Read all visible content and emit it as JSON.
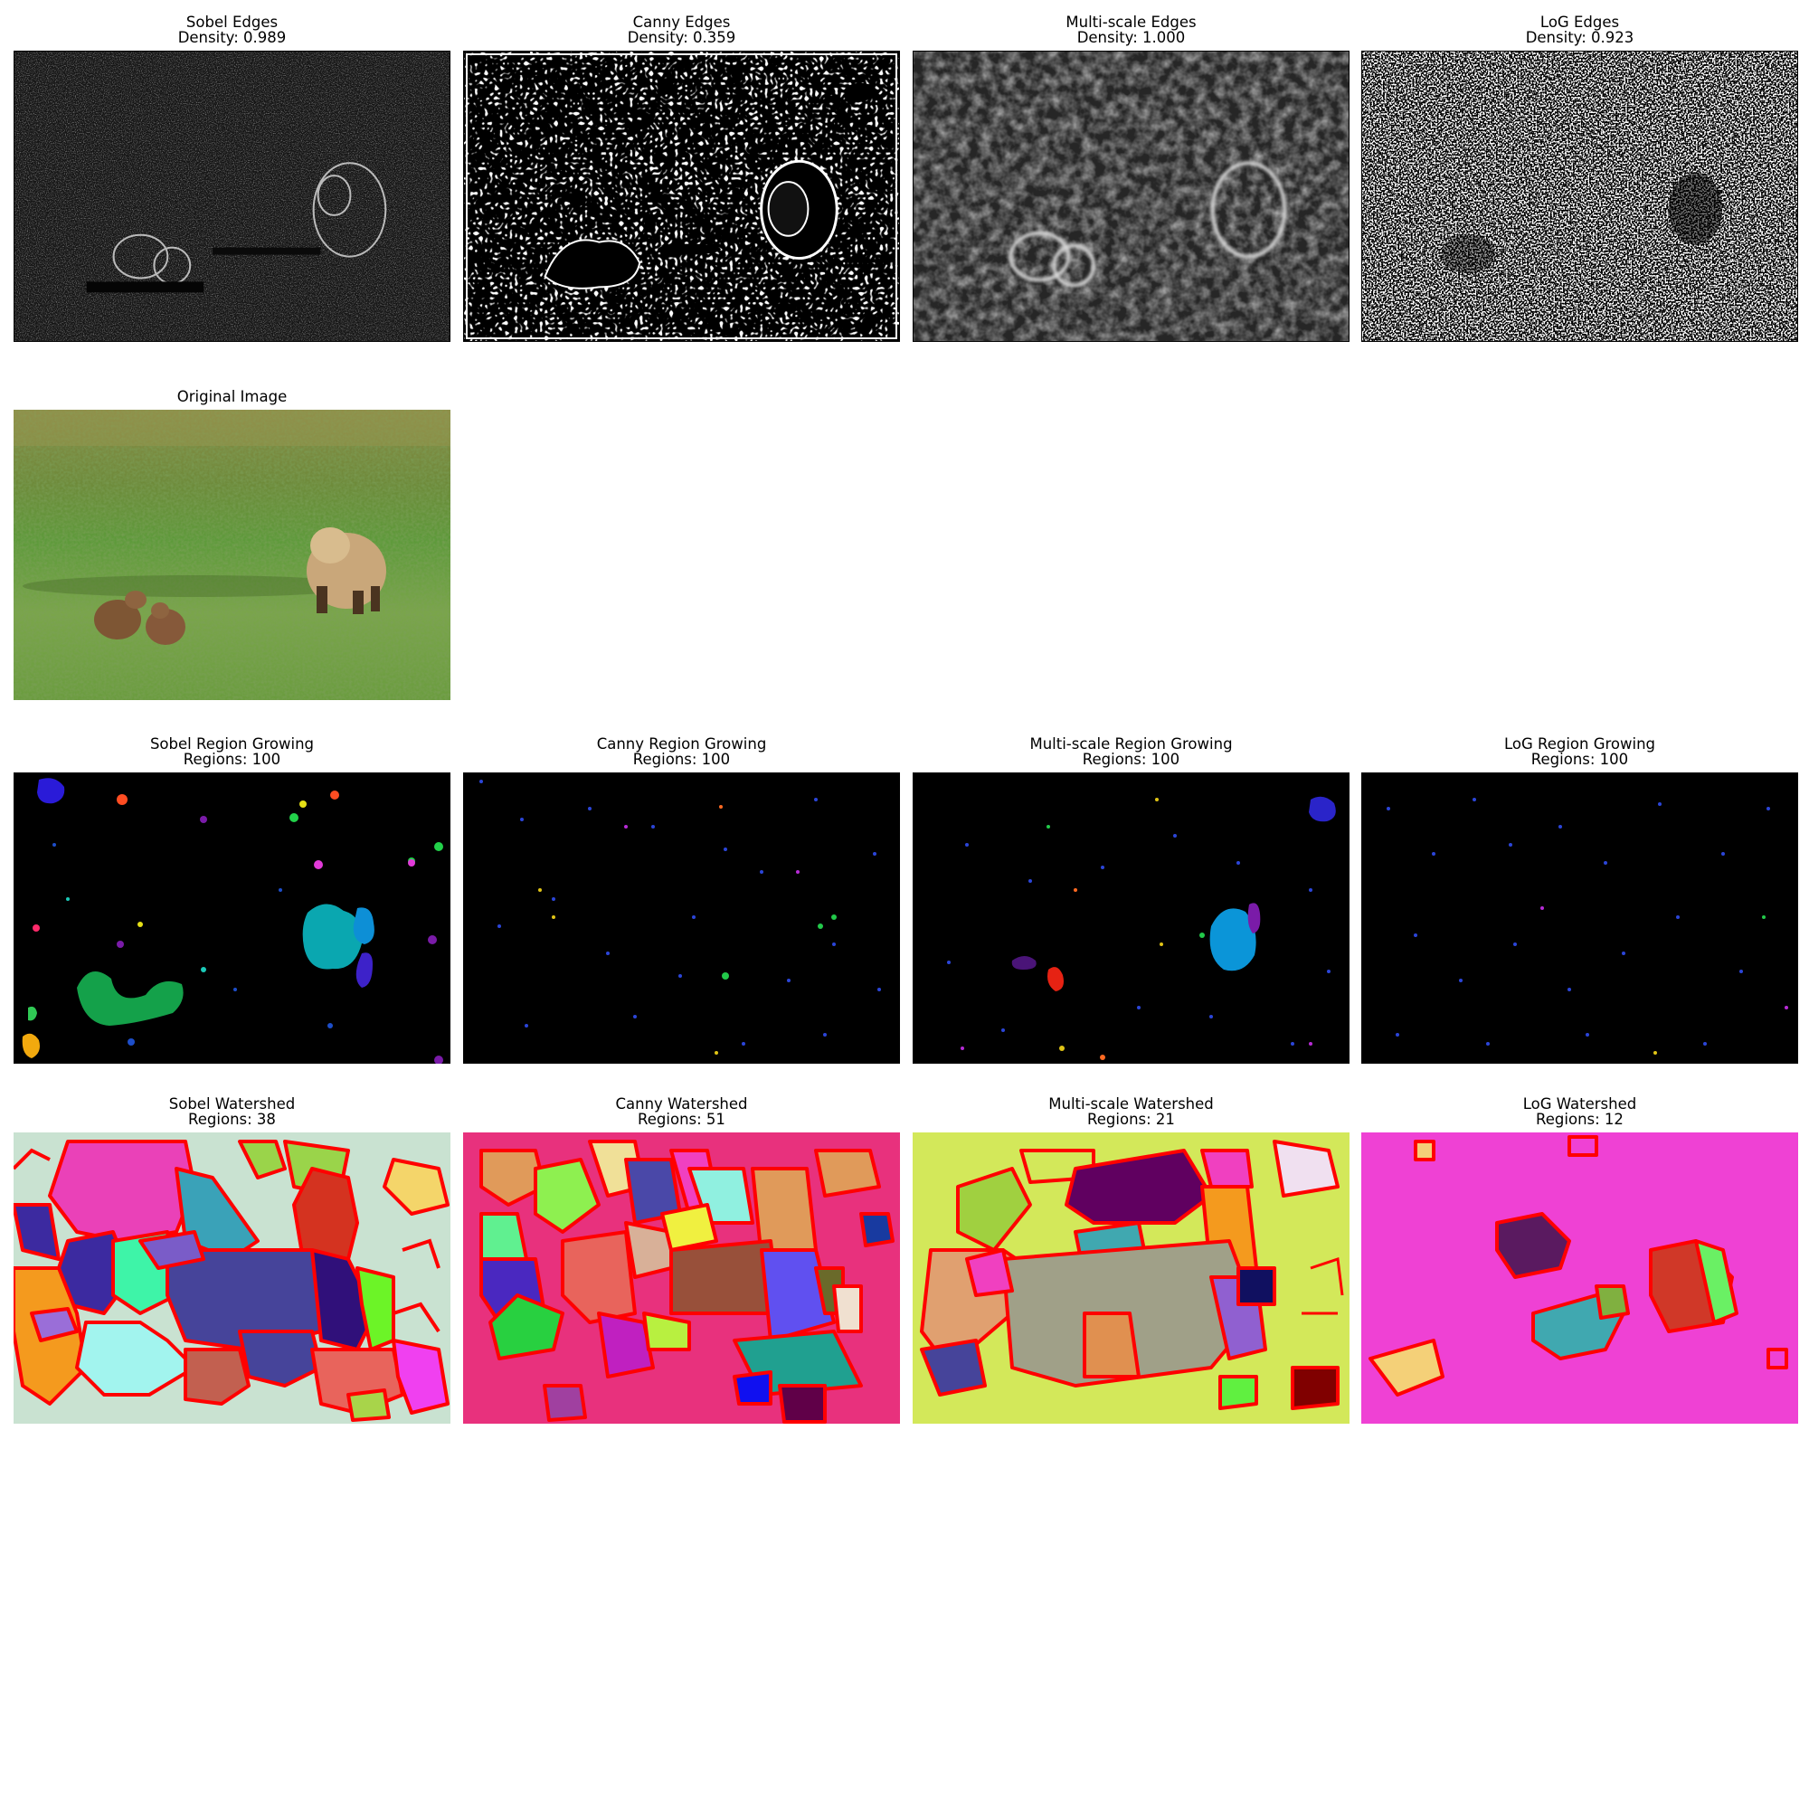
{
  "figure": {
    "edges": [
      {
        "title": "Sobel Edges",
        "subtitle": "Density: 0.989"
      },
      {
        "title": "Canny Edges",
        "subtitle": "Density: 0.359"
      },
      {
        "title": "Multi-scale Edges",
        "subtitle": "Density: 1.000"
      },
      {
        "title": "LoG Edges",
        "subtitle": "Density: 0.923"
      }
    ],
    "original": {
      "title": "Original Image"
    },
    "region_growing": [
      {
        "title": "Sobel Region Growing",
        "subtitle": "Regions: 100"
      },
      {
        "title": "Canny Region Growing",
        "subtitle": "Regions: 100"
      },
      {
        "title": "Multi-scale Region Growing",
        "subtitle": "Regions: 100"
      },
      {
        "title": "LoG Region Growing",
        "subtitle": "Regions: 100"
      }
    ],
    "watershed": [
      {
        "title": "Sobel Watershed",
        "subtitle": "Regions: 38"
      },
      {
        "title": "Canny Watershed",
        "subtitle": "Regions: 51"
      },
      {
        "title": "Multi-scale Watershed",
        "subtitle": "Regions: 21"
      },
      {
        "title": "LoG Watershed",
        "subtitle": "Regions: 12"
      }
    ]
  },
  "colors": {
    "boundary": "#ff0000",
    "sobel_ws_bg": "#c9e2d1",
    "canny_ws_bg": "#e8317d",
    "multiscale_ws_bg": "#d3e85a",
    "log_ws_bg": "#ef41d4"
  }
}
